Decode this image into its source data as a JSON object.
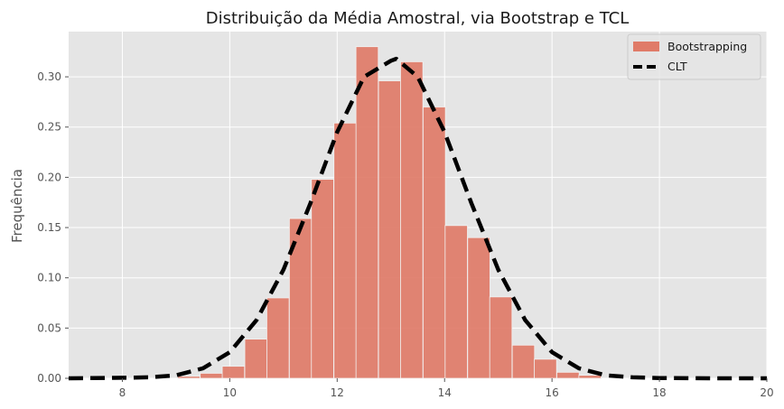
{
  "chart_data": {
    "type": "bar",
    "title": "Distribuição da Média Amostral, via Bootstrap e TCL",
    "xlabel": "",
    "ylabel": "Frequência",
    "xlim": [
      7,
      20
    ],
    "ylim": [
      0,
      0.345
    ],
    "xticks": [
      8,
      10,
      12,
      14,
      16,
      18,
      20
    ],
    "yticks": [
      0.0,
      0.05,
      0.1,
      0.15,
      0.2,
      0.25,
      0.3
    ],
    "ytick_labels": [
      "0.00",
      "0.05",
      "0.10",
      "0.15",
      "0.20",
      "0.25",
      "0.30"
    ],
    "grid": true,
    "legend_position": "top-right",
    "series": [
      {
        "name": "Bootstrapping",
        "kind": "histogram",
        "color": "#e07b68",
        "bin_width": 0.415,
        "bin_left_edges": [
          9.03,
          9.45,
          9.86,
          10.28,
          10.69,
          11.11,
          11.52,
          11.94,
          12.35,
          12.77,
          13.18,
          13.6,
          14.01,
          14.43,
          14.84,
          15.26,
          15.67,
          16.09,
          16.5
        ],
        "values": [
          0.002,
          0.005,
          0.012,
          0.039,
          0.08,
          0.159,
          0.198,
          0.254,
          0.33,
          0.296,
          0.315,
          0.27,
          0.152,
          0.14,
          0.081,
          0.033,
          0.019,
          0.006,
          0.003
        ]
      },
      {
        "name": "CLT",
        "kind": "line",
        "style": "dashed",
        "color": "#000000",
        "x": [
          7.0,
          8.0,
          8.5,
          9.0,
          9.5,
          10.0,
          10.5,
          11.0,
          11.5,
          12.0,
          12.5,
          13.0,
          13.1,
          13.5,
          14.0,
          14.5,
          15.0,
          15.5,
          16.0,
          16.5,
          17.0,
          17.5,
          18.0,
          19.0,
          20.0
        ],
        "y": [
          0.0,
          0.0005,
          0.001,
          0.003,
          0.01,
          0.026,
          0.058,
          0.108,
          0.174,
          0.245,
          0.3,
          0.316,
          0.318,
          0.3,
          0.245,
          0.174,
          0.108,
          0.058,
          0.026,
          0.01,
          0.003,
          0.001,
          0.0003,
          0.0,
          0.0
        ]
      }
    ]
  },
  "legend": {
    "items": [
      {
        "label": "Bootstrapping",
        "swatch": "patch",
        "color": "#e07b68"
      },
      {
        "label": "CLT",
        "swatch": "dashed-line",
        "color": "#000000"
      }
    ]
  },
  "theme": {
    "plot_background": "#e5e5e5",
    "grid_color": "#ffffff"
  }
}
